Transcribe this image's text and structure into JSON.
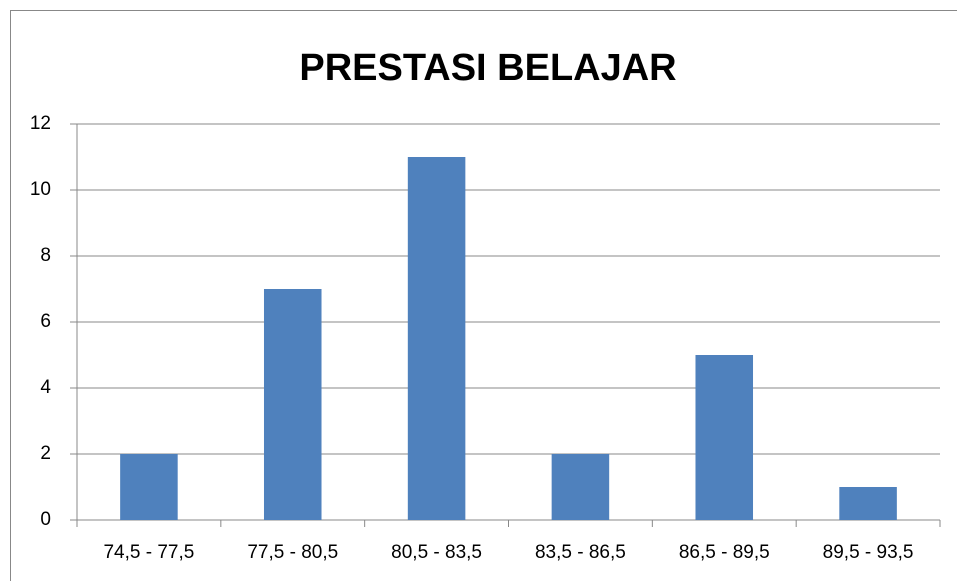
{
  "chart_data": {
    "type": "bar",
    "title": "PRESTASI BELAJAR",
    "categories": [
      "74,5 - 77,5",
      "77,5 - 80,5",
      "80,5 - 83,5",
      "83,5 - 86,5",
      "86,5 - 89,5",
      "89,5 - 93,5"
    ],
    "values": [
      2,
      7,
      11,
      2,
      5,
      1
    ],
    "color": "#4f81bd",
    "ylim": [
      0,
      12
    ],
    "yticks": [
      0,
      2,
      4,
      6,
      8,
      10,
      12
    ],
    "grid": true
  }
}
